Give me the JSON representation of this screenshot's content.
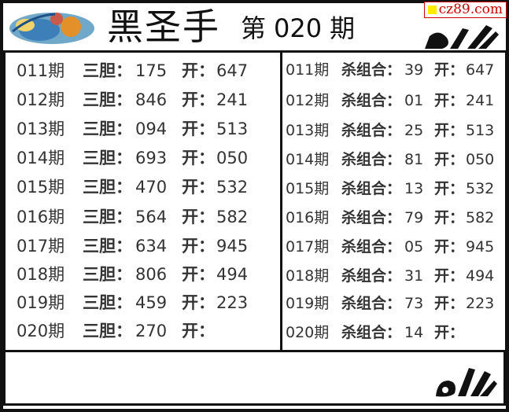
{
  "header": {
    "title": "黑圣手",
    "issue_prefix": "第",
    "issue_number": "020",
    "issue_suffix": "期",
    "watermark": "cz89.com",
    "watermark_color": "#cc0000"
  },
  "left_panel": {
    "label": "三胆：",
    "open_label": "开：",
    "rows": [
      {
        "period": "011期",
        "pick": "175",
        "open": "647"
      },
      {
        "period": "012期",
        "pick": "846",
        "open": "241"
      },
      {
        "period": "013期",
        "pick": "094",
        "open": "513"
      },
      {
        "period": "014期",
        "pick": "693",
        "open": "050"
      },
      {
        "period": "015期",
        "pick": "470",
        "open": "532"
      },
      {
        "period": "016期",
        "pick": "564",
        "open": "582"
      },
      {
        "period": "017期",
        "pick": "634",
        "open": "945"
      },
      {
        "period": "018期",
        "pick": "806",
        "open": "494"
      },
      {
        "period": "019期",
        "pick": "459",
        "open": "223"
      },
      {
        "period": "020期",
        "pick": "270",
        "open": ""
      }
    ]
  },
  "right_panel": {
    "label": "杀组合：",
    "open_label": "开：",
    "rows": [
      {
        "period": "011期",
        "pick": "39",
        "open": "647"
      },
      {
        "period": "012期",
        "pick": "01",
        "open": "241"
      },
      {
        "period": "013期",
        "pick": "25",
        "open": "513"
      },
      {
        "period": "014期",
        "pick": "81",
        "open": "050"
      },
      {
        "period": "015期",
        "pick": "13",
        "open": "532"
      },
      {
        "period": "016期",
        "pick": "79",
        "open": "582"
      },
      {
        "period": "017期",
        "pick": "05",
        "open": "945"
      },
      {
        "period": "018期",
        "pick": "31",
        "open": "494"
      },
      {
        "period": "019期",
        "pick": "73",
        "open": "223"
      },
      {
        "period": "020期",
        "pick": "14",
        "open": ""
      }
    ]
  },
  "icons": {
    "logo": "colorful-globe-logo",
    "hand": "ok-hand-gesture-icon"
  }
}
